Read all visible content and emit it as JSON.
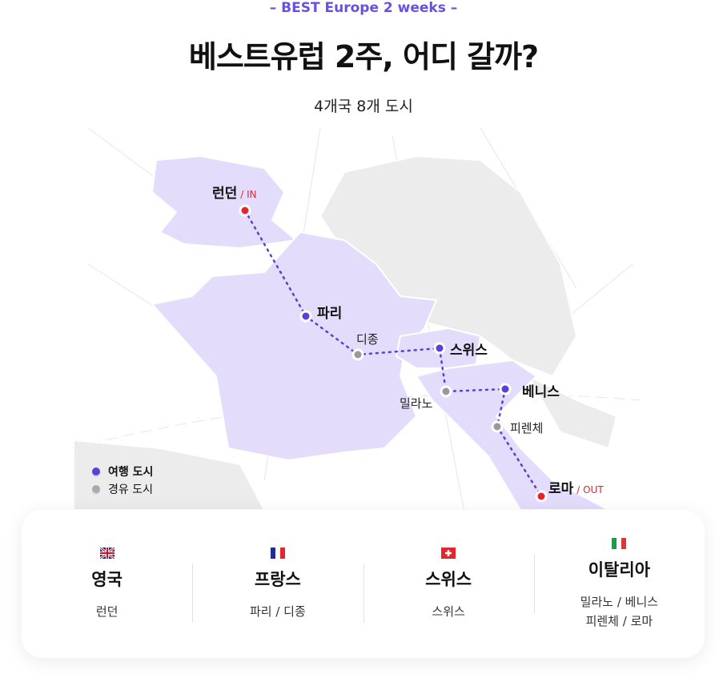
{
  "header": {
    "eyebrow": "–  BEST Europe 2 weeks  –",
    "title": "베스트유럽 2주, 어디 갈까?",
    "subtitle": "4개국 8개 도시"
  },
  "colors": {
    "accent": "#6a4fe0",
    "route": "#5b3fd6",
    "in_out": "#e3262b",
    "highlight_land": "#e4dcfb",
    "land": "#ececec"
  },
  "map": {
    "cities": {
      "london": "런던",
      "london_tag": "/ IN",
      "paris": "파리",
      "dijon": "디종",
      "swiss": "스위스",
      "milano": "밀라노",
      "venice": "베니스",
      "firenze": "피렌체",
      "roma": "로마",
      "roma_tag": "/ OUT"
    },
    "legend": {
      "travel": "여행 도시",
      "transit": "경유 도시"
    }
  },
  "countries": [
    {
      "flag": "uk-flag",
      "name": "영국",
      "cities": "런던"
    },
    {
      "flag": "france-flag",
      "name": "프랑스",
      "cities": "파리 / 디종"
    },
    {
      "flag": "swiss-flag",
      "name": "스위스",
      "cities": "스위스"
    },
    {
      "flag": "italy-flag",
      "name": "이탈리아",
      "cities": "밀라노 / 베니스\n피렌체 / 로마"
    }
  ]
}
